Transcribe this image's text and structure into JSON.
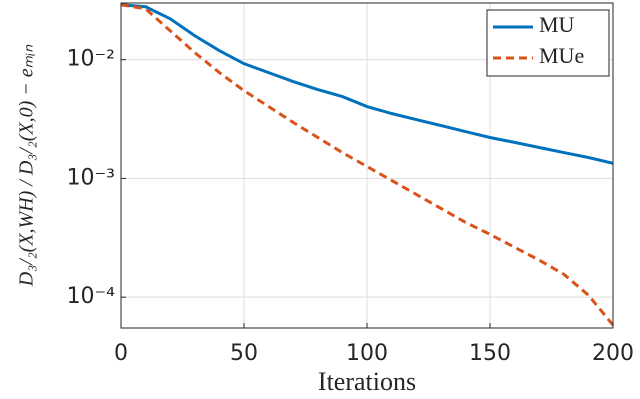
{
  "chart_data": {
    "type": "line",
    "xlabel": "Iterations",
    "ylabel": "D₃/₂(X,WH) / D₃/₂(X,0) − eₘᵢₙ",
    "x": [
      0,
      10,
      20,
      30,
      40,
      50,
      60,
      70,
      80,
      90,
      100,
      110,
      120,
      130,
      140,
      150,
      160,
      170,
      180,
      190,
      200
    ],
    "series": [
      {
        "name": "MU",
        "color": "#0072bd",
        "dash": false,
        "values": [
          0.029,
          0.0279,
          0.0221,
          0.0159,
          0.0119,
          0.00925,
          0.00778,
          0.00654,
          0.0056,
          0.00489,
          0.00403,
          0.00352,
          0.00313,
          0.00279,
          0.00248,
          0.00221,
          0.00201,
          0.00182,
          0.00165,
          0.0015,
          0.00134
        ]
      },
      {
        "name": "MUe",
        "color": "#d95319",
        "dash": true,
        "values": [
          0.029,
          0.0268,
          0.0175,
          0.01146,
          0.00778,
          0.00548,
          0.00403,
          0.00296,
          0.00221,
          0.00165,
          0.00126,
          0.000962,
          0.000734,
          0.00056,
          0.000427,
          0.000338,
          0.000263,
          0.000205,
          0.000156,
          0.000104,
          5.82e-05
        ]
      }
    ],
    "xlim": [
      0,
      200
    ],
    "xticks": [
      0,
      50,
      100,
      150,
      200
    ],
    "ylim": [
      5.5e-05,
      0.03
    ],
    "log_y": true,
    "yticks": [
      {
        "value": 0.0001,
        "label": "10⁻⁴"
      },
      {
        "value": 0.001,
        "label": "10⁻³"
      },
      {
        "value": 0.01,
        "label": "10⁻²"
      }
    ],
    "grid": true,
    "legend": "top-right"
  }
}
